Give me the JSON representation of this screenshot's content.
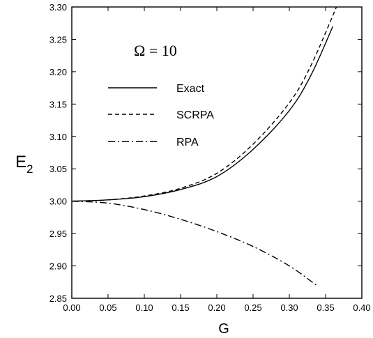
{
  "chart_data": {
    "type": "line",
    "xlabel": "G",
    "ylabel_main": "E",
    "ylabel_sub": "2",
    "xlim": [
      0.0,
      0.4
    ],
    "ylim": [
      2.85,
      3.3
    ],
    "x_ticks": [
      0.0,
      0.05,
      0.1,
      0.15,
      0.2,
      0.25,
      0.3,
      0.35,
      0.4
    ],
    "y_ticks": [
      2.85,
      2.9,
      2.95,
      3.0,
      3.05,
      3.1,
      3.15,
      3.2,
      3.25,
      3.3
    ],
    "x_tick_labels": [
      "0.00",
      "0.05",
      "0.10",
      "0.15",
      "0.20",
      "0.25",
      "0.30",
      "0.35",
      "0.40"
    ],
    "y_tick_labels": [
      "2.85",
      "2.90",
      "2.95",
      "3.00",
      "3.05",
      "3.10",
      "3.15",
      "3.20",
      "3.25",
      "3.30"
    ],
    "annotation": "Ω = 10",
    "legend_placement": "upper-left",
    "grid": false,
    "series": [
      {
        "name": "Exact",
        "style": "solid",
        "x": [
          0.0,
          0.05,
          0.1,
          0.15,
          0.2,
          0.25,
          0.3,
          0.33,
          0.36
        ],
        "y": [
          3.0,
          3.002,
          3.007,
          3.018,
          3.038,
          3.08,
          3.14,
          3.195,
          3.27
        ]
      },
      {
        "name": "SCRPA",
        "style": "dashed",
        "x": [
          0.0,
          0.05,
          0.1,
          0.15,
          0.2,
          0.25,
          0.3,
          0.33,
          0.365
        ],
        "y": [
          3.0,
          3.002,
          3.008,
          3.02,
          3.043,
          3.088,
          3.152,
          3.21,
          3.3
        ]
      },
      {
        "name": "RPA",
        "style": "dashdot",
        "x": [
          0.0,
          0.05,
          0.1,
          0.15,
          0.2,
          0.25,
          0.3,
          0.34
        ],
        "y": [
          3.0,
          2.997,
          2.987,
          2.972,
          2.953,
          2.93,
          2.9,
          2.868
        ]
      }
    ]
  }
}
